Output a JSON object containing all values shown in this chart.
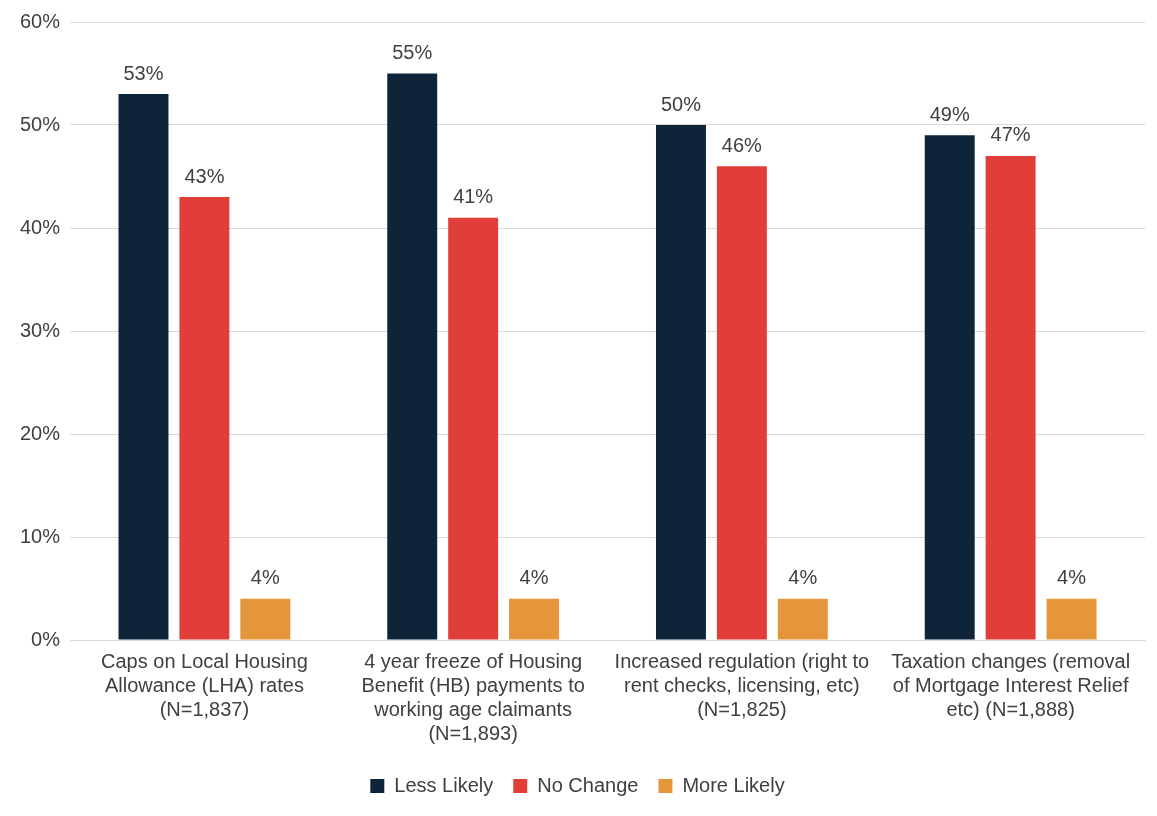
{
  "chart_data": {
    "type": "bar",
    "categories": [
      "Caps on Local Housing Allowance (LHA) rates (N=1,837)",
      "4 year freeze of Housing Benefit (HB) payments to working age claimants (N=1,893)",
      "Increased regulation (right to rent checks, licensing, etc) (N=1,825)",
      "Taxation changes (removal of Mortgage Interest Relief etc) (N=1,888)"
    ],
    "series": [
      {
        "name": "Less Likely",
        "color": "#0e2439",
        "values": [
          53,
          55,
          50,
          49
        ],
        "value_labels": [
          "53%",
          "55%",
          "50%",
          "49%"
        ]
      },
      {
        "name": "No Change",
        "color": "#e23e39",
        "values": [
          43,
          41,
          46,
          47
        ],
        "value_labels": [
          "43%",
          "41%",
          "46%",
          "47%"
        ]
      },
      {
        "name": "More Likely",
        "color": "#e6963a",
        "values": [
          4,
          4,
          4,
          4
        ],
        "value_labels": [
          "4%",
          "4%",
          "4%",
          "4%"
        ]
      }
    ],
    "ylim": [
      0,
      60
    ],
    "yticks": [
      {
        "value": 0,
        "label": "0%"
      },
      {
        "value": 10,
        "label": "10%"
      },
      {
        "value": 20,
        "label": "20%"
      },
      {
        "value": 30,
        "label": "30%"
      },
      {
        "value": 40,
        "label": "40%"
      },
      {
        "value": 50,
        "label": "50%"
      },
      {
        "value": 60,
        "label": "60%"
      }
    ],
    "grid": "y",
    "legend": "bottom"
  }
}
